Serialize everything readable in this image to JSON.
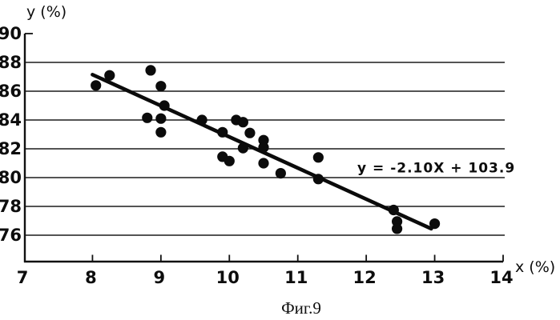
{
  "figure": {
    "caption": "Фиг.9",
    "y_axis_title": "y (%)",
    "x_axis_title": "x (%)",
    "equation_label": "y = -2.10X + 103.9"
  },
  "colors": {
    "ink": "#0b0b0b",
    "paper": "#ffffff"
  },
  "chart_data": {
    "type": "scatter",
    "title": "",
    "xlabel": "x (%)",
    "ylabel": "y (%)",
    "xlim": [
      7,
      14
    ],
    "ylim": [
      74.2,
      90
    ],
    "x_ticks": [
      7,
      8,
      9,
      10,
      11,
      12,
      13,
      14
    ],
    "y_ticks": [
      90,
      88,
      86,
      84,
      82,
      80,
      78,
      76
    ],
    "grid_y_values": [
      88,
      86,
      84,
      82,
      80,
      78,
      76
    ],
    "grid": "horizontal",
    "legend": "none",
    "points": [
      [
        8.05,
        86.4
      ],
      [
        8.25,
        87.1
      ],
      [
        8.85,
        87.45
      ],
      [
        9.0,
        86.35
      ],
      [
        9.05,
        85.0
      ],
      [
        8.8,
        84.15
      ],
      [
        9.0,
        84.1
      ],
      [
        9.0,
        83.15
      ],
      [
        9.6,
        84.0
      ],
      [
        9.9,
        83.15
      ],
      [
        10.1,
        84.0
      ],
      [
        10.2,
        83.85
      ],
      [
        10.3,
        83.1
      ],
      [
        10.5,
        82.6
      ],
      [
        10.2,
        82.05
      ],
      [
        10.5,
        82.1
      ],
      [
        9.9,
        81.45
      ],
      [
        10.0,
        81.15
      ],
      [
        10.5,
        81.0
      ],
      [
        10.75,
        80.3
      ],
      [
        11.3,
        81.4
      ],
      [
        11.3,
        79.9
      ],
      [
        12.4,
        77.75
      ],
      [
        12.45,
        76.95
      ],
      [
        12.45,
        76.45
      ],
      [
        13.0,
        76.8
      ]
    ],
    "trendline": {
      "label": "y = -2.10X + 103.9",
      "slope": -2.1,
      "intercept": 103.9,
      "x1": 8.0,
      "y1": 87.15,
      "x2": 12.95,
      "y2": 76.45
    },
    "annotation": {
      "text": "y = -2.10X + 103.9",
      "x": 11.87,
      "y": 80.35
    }
  }
}
